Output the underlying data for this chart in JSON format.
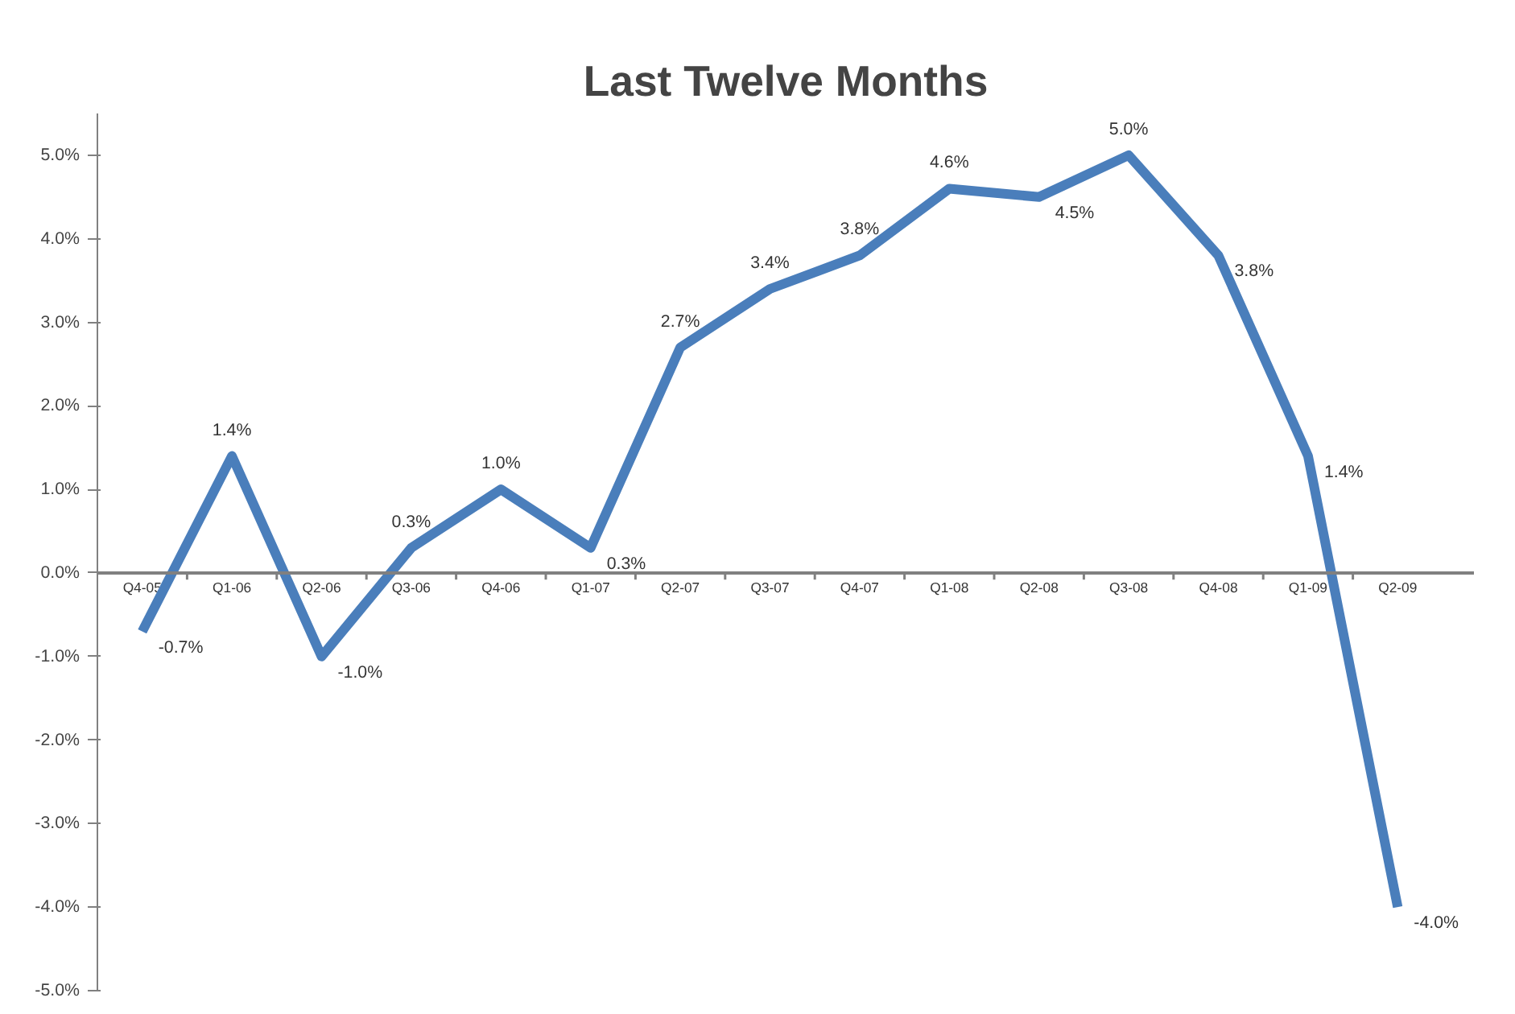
{
  "chart_data": {
    "type": "line",
    "title": "Last Twelve Months",
    "categories": [
      "Q4-05",
      "Q1-06",
      "Q2-06",
      "Q3-06",
      "Q4-06",
      "Q1-07",
      "Q2-07",
      "Q3-07",
      "Q4-07",
      "Q1-08",
      "Q2-08",
      "Q3-08",
      "Q4-08",
      "Q1-09",
      "Q2-09"
    ],
    "series": [
      {
        "color": "#4a7ebb",
        "values": [
          -0.7,
          1.4,
          -1.0,
          0.3,
          1.0,
          0.3,
          2.7,
          3.4,
          3.8,
          4.6,
          4.5,
          5.0,
          3.8,
          1.4,
          -4.0
        ],
        "value_labels": [
          "-0.7%",
          "1.4%",
          "-1.0%",
          "0.3%",
          "1.0%",
          "0.3%",
          "2.7%",
          "3.4%",
          "3.8%",
          "4.6%",
          "4.5%",
          "5.0%",
          "3.8%",
          "1.4%",
          "-4.0%"
        ]
      }
    ],
    "ylim": [
      -5,
      5.5
    ],
    "yticks": [
      {
        "value": -5,
        "label": "-5.0%"
      },
      {
        "value": -4,
        "label": "-4.0%"
      },
      {
        "value": -3,
        "label": "-3.0%"
      },
      {
        "value": -2,
        "label": "-2.0%"
      },
      {
        "value": -1,
        "label": "-1.0%"
      },
      {
        "value": 0,
        "label": "0.0%"
      },
      {
        "value": 1,
        "label": "1.0%"
      },
      {
        "value": 2,
        "label": "2.0%"
      },
      {
        "value": 3,
        "label": "3.0%"
      },
      {
        "value": 4,
        "label": "4.0%"
      },
      {
        "value": 5,
        "label": "5.0%"
      }
    ],
    "grid": false,
    "marker": "none",
    "line_style": "solid"
  }
}
